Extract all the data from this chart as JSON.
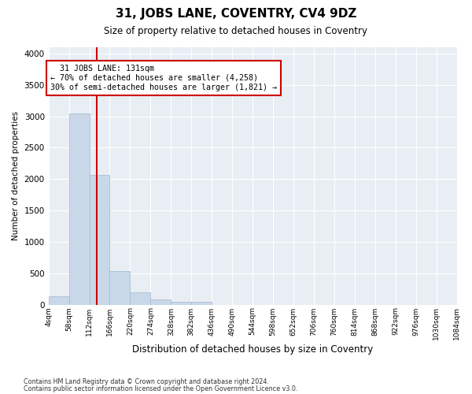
{
  "title": "31, JOBS LANE, COVENTRY, CV4 9DZ",
  "subtitle": "Size of property relative to detached houses in Coventry",
  "xlabel": "Distribution of detached houses by size in Coventry",
  "ylabel": "Number of detached properties",
  "property_size": 131,
  "property_label": "31 JOBS LANE: 131sqm",
  "pct_smaller": 70,
  "n_smaller": 4258,
  "pct_larger_semi": 30,
  "n_larger_semi": 1821,
  "bar_color": "#c8d8e8",
  "bar_edge_color": "#a0b8cc",
  "vline_color": "#cc0000",
  "annotation_box_color": "#cc0000",
  "background_color": "#e8eef4",
  "grid_color": "#ffffff",
  "tick_labels": [
    "4sqm",
    "58sqm",
    "112sqm",
    "166sqm",
    "220sqm",
    "274sqm",
    "328sqm",
    "382sqm",
    "436sqm",
    "490sqm",
    "544sqm",
    "598sqm",
    "652sqm",
    "706sqm",
    "760sqm",
    "814sqm",
    "868sqm",
    "922sqm",
    "976sqm",
    "1030sqm",
    "1084sqm"
  ],
  "bin_edges": [
    4,
    58,
    112,
    166,
    220,
    274,
    328,
    382,
    436,
    490,
    544,
    598,
    652,
    706,
    760,
    814,
    868,
    922,
    976,
    1030,
    1084
  ],
  "bar_heights": [
    130,
    3050,
    2070,
    530,
    200,
    80,
    50,
    40,
    0,
    0,
    0,
    0,
    0,
    0,
    0,
    0,
    0,
    0,
    0,
    0
  ],
  "ylim": [
    0,
    4100
  ],
  "yticks": [
    0,
    500,
    1000,
    1500,
    2000,
    2500,
    3000,
    3500,
    4000
  ],
  "footer_line1": "Contains HM Land Registry data © Crown copyright and database right 2024.",
  "footer_line2": "Contains public sector information licensed under the Open Government Licence v3.0."
}
